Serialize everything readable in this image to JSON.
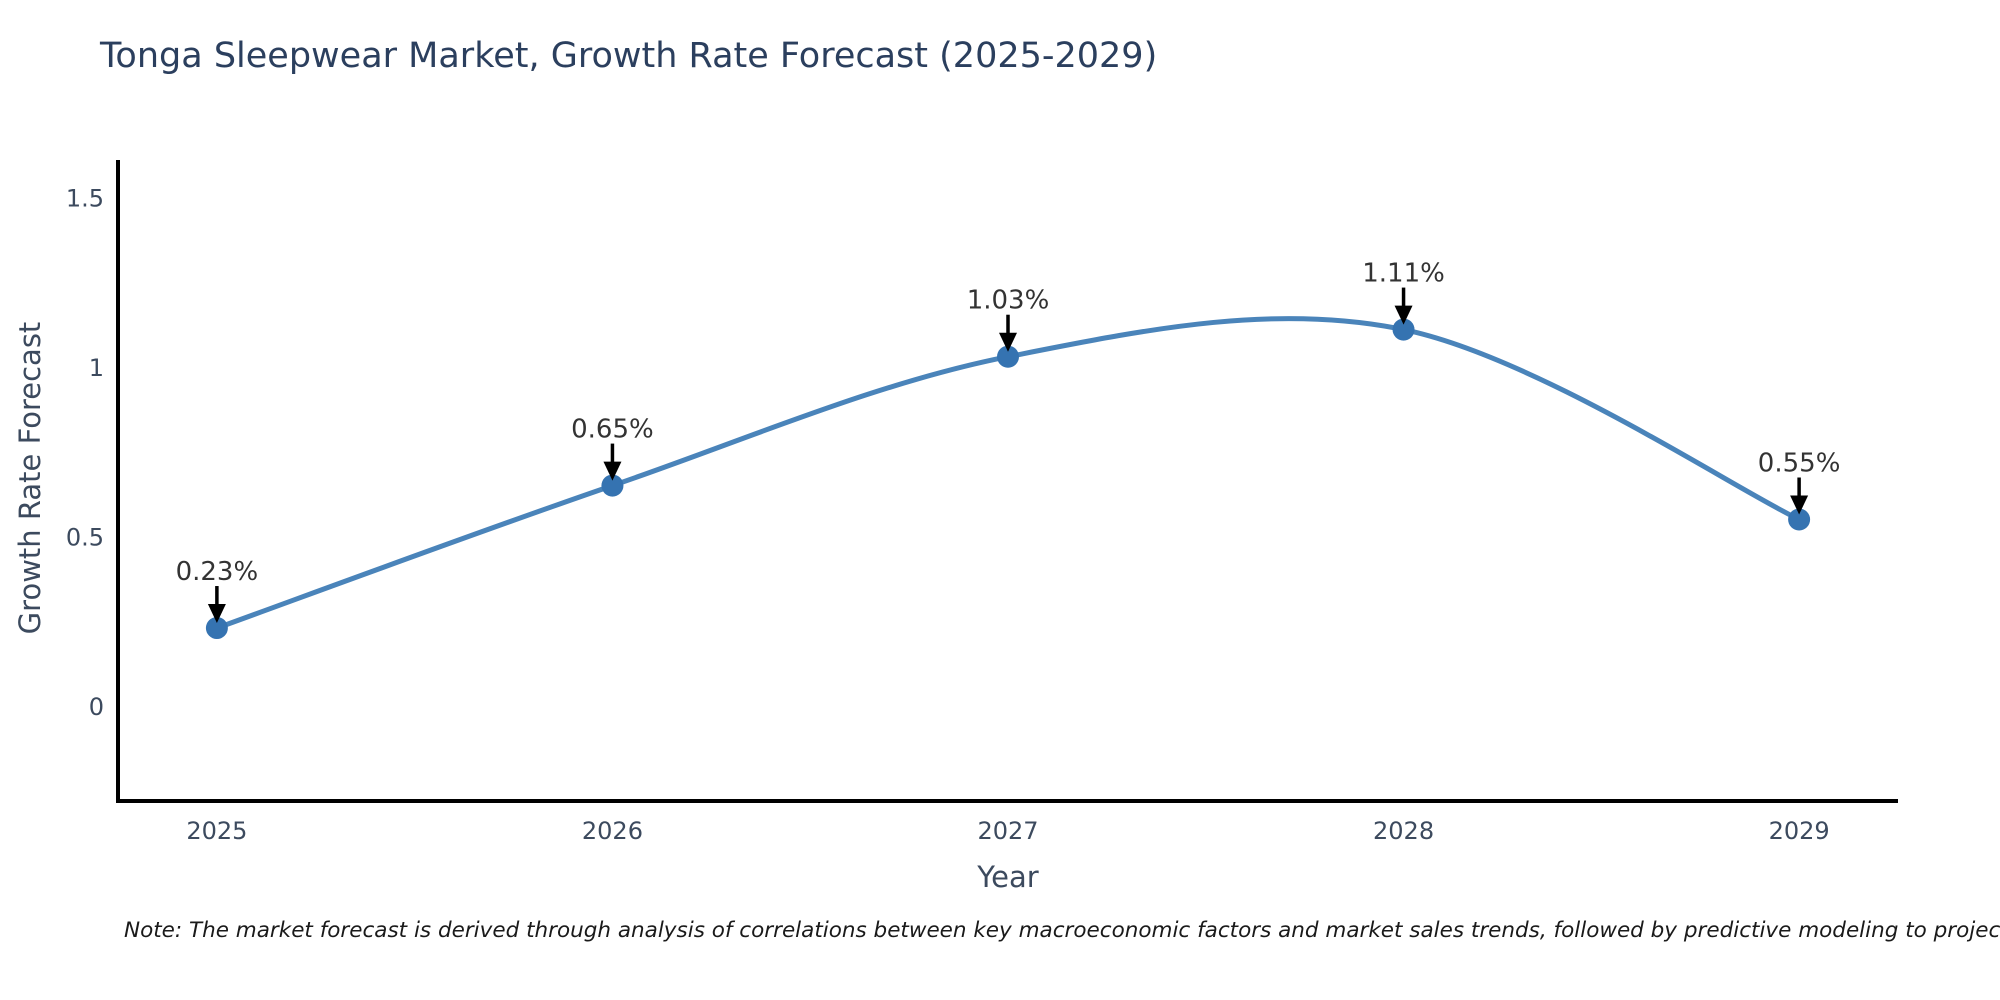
{
  "page": {
    "note": "Note: The market forecast is derived through analysis of correlations between key macroeconomic factors and market sales trends, followed by predictive modeling to project future sales"
  },
  "chart_data": {
    "type": "line",
    "title": "Tonga Sleepwear Market, Growth Rate Forecast (2025-2029)",
    "xlabel": "Year",
    "ylabel": "Growth Rate Forecast",
    "x": [
      2025,
      2026,
      2027,
      2028,
      2029
    ],
    "series": [
      {
        "name": "Growth Rate Forecast",
        "values": [
          0.23,
          0.65,
          1.03,
          1.11,
          0.55
        ]
      }
    ],
    "point_labels": [
      "0.23%",
      "0.65%",
      "1.03%",
      "1.11%",
      "0.55%"
    ],
    "yticks": [
      0,
      0.5,
      1,
      1.5
    ],
    "ylim": [
      -0.28,
      1.61
    ],
    "xlim": [
      2024.75,
      2029.25
    ],
    "grid": false,
    "legend": "none",
    "smooth": true,
    "annotation_style": "arrow-down-to-point",
    "colors": {
      "line": "#4a84ba",
      "marker": "#3573b1",
      "arrow": "#000000",
      "annotation_text": "#333333",
      "axis": "#000000",
      "tick_text": "#3c4a5e",
      "title_text": "#2b3f5e",
      "note_text": "#1a1a1a"
    }
  }
}
